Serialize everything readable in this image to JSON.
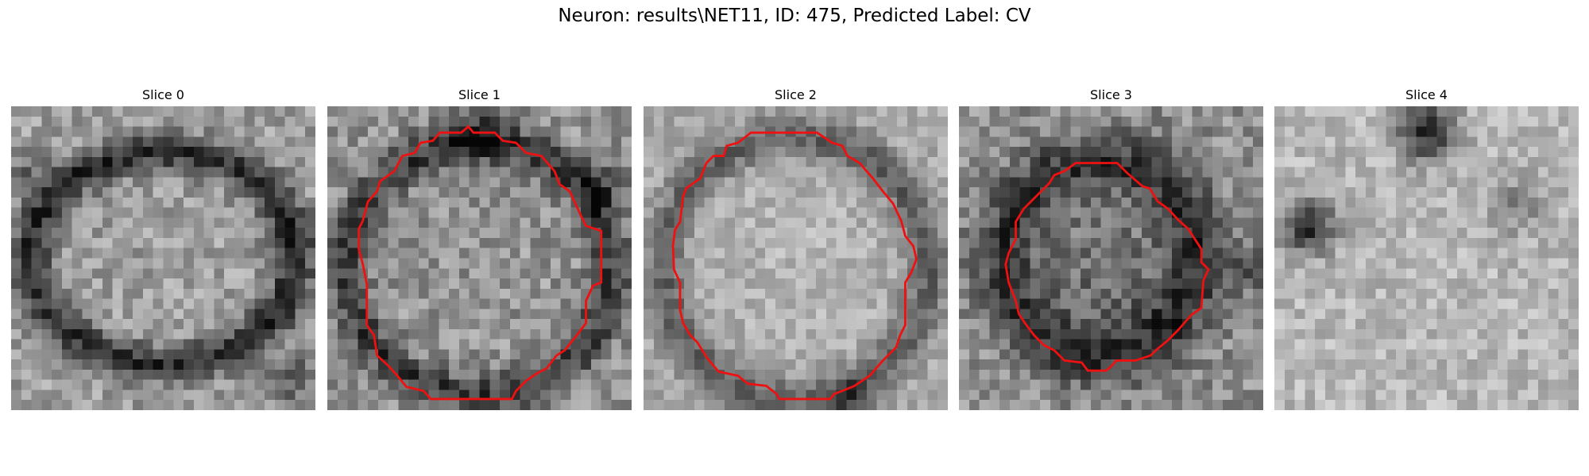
{
  "figure": {
    "title": "Neuron: results\\NET11, ID: 475, Predicted Label: CV"
  },
  "panels": [
    {
      "title": "Slice 0",
      "has_contour": false
    },
    {
      "title": "Slice 1",
      "has_contour": true
    },
    {
      "title": "Slice 2",
      "has_contour": true
    },
    {
      "title": "Slice 3",
      "has_contour": true
    },
    {
      "title": "Slice 4",
      "has_contour": false
    }
  ],
  "colors": {
    "contour": "#ee1111",
    "background": "#ffffff"
  }
}
